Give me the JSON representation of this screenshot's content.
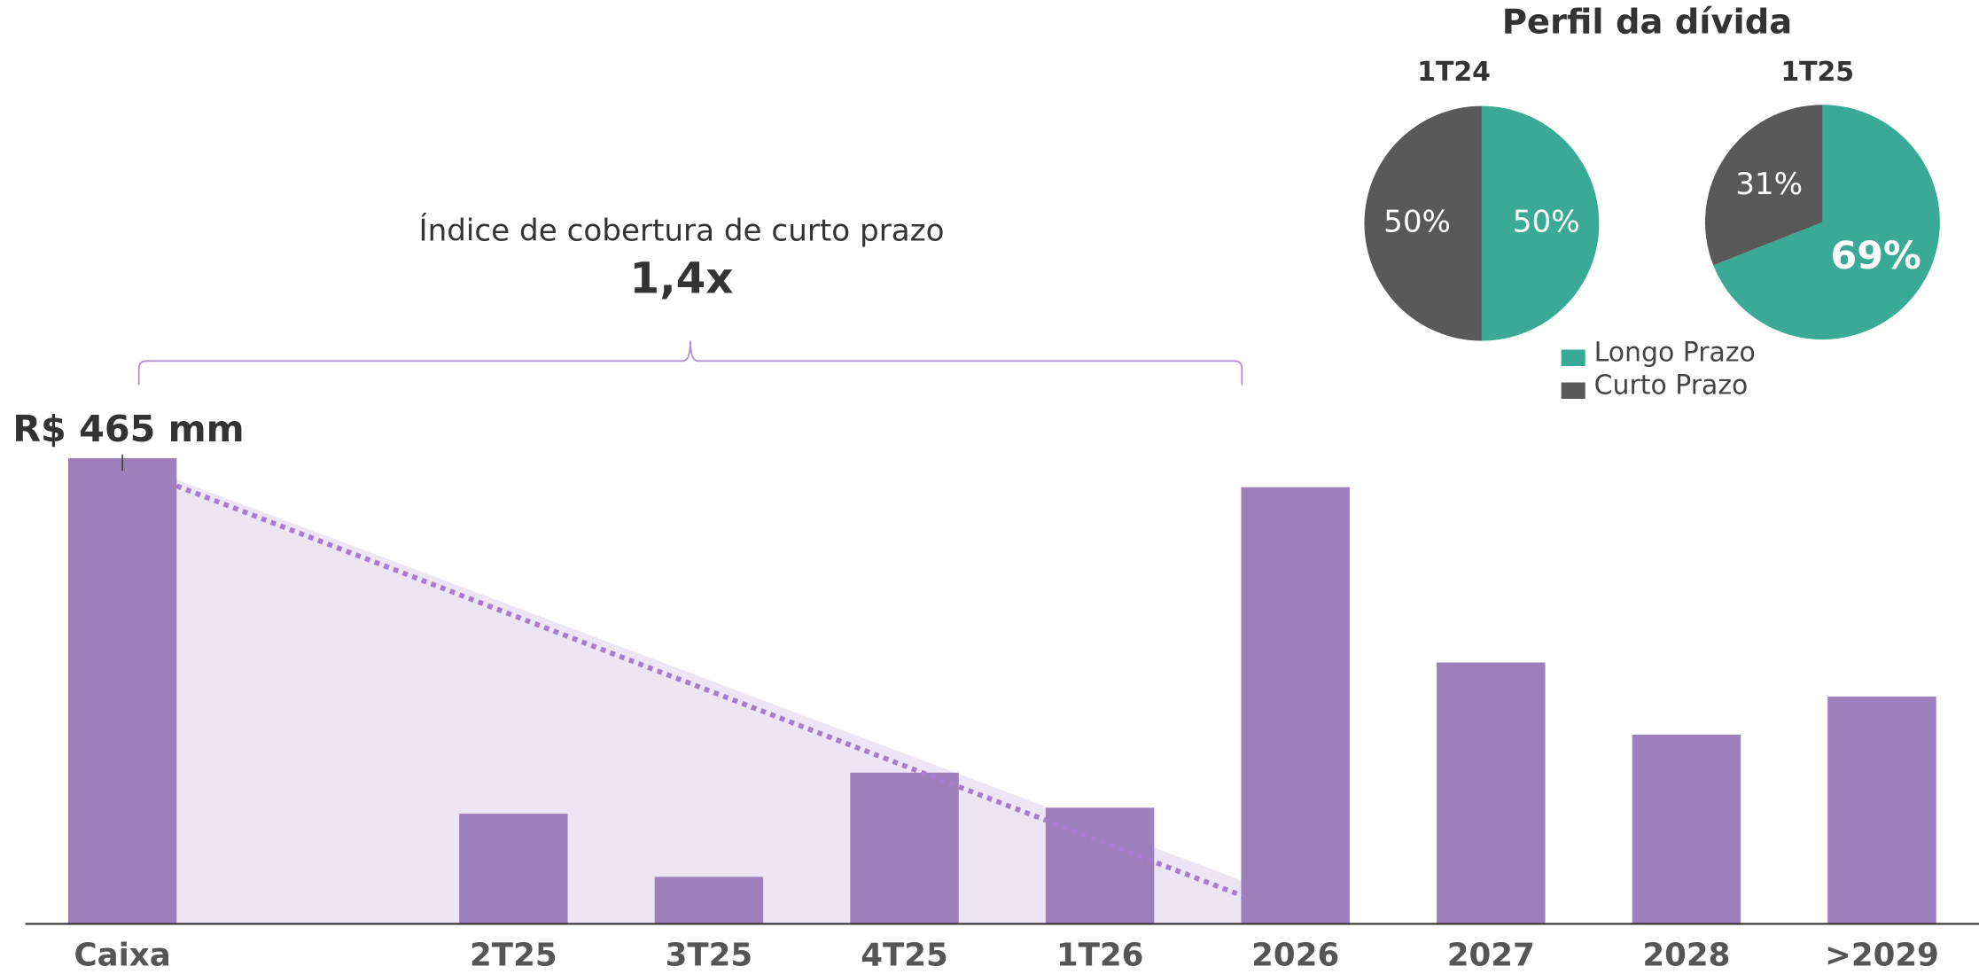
{
  "chart_data": [
    {
      "type": "bar",
      "categories": [
        "Caixa",
        null,
        "2T25",
        "3T25",
        "4T25",
        "1T26",
        "2026",
        "2027",
        "2028",
        ">2029"
      ],
      "values": [
        465,
        null,
        110,
        47,
        151,
        116,
        436,
        261,
        189,
        227
      ],
      "value_labels": [
        "R$ 465 mm",
        null,
        null,
        null,
        null,
        null,
        null,
        null,
        null,
        null
      ],
      "color": "#9d80bb",
      "annotations": [
        "Índice de cobertura de curto prazo",
        "1,4x"
      ]
    },
    {
      "type": "pie",
      "title": "Perfil da dívida",
      "categories": [
        "Longo Prazo",
        "Curto Prazo"
      ],
      "colors": [
        "#3aaa96",
        "#595959"
      ],
      "series": [
        {
          "name": "1T24",
          "values": [
            50,
            50
          ],
          "value_labels": [
            "50%",
            "50%"
          ]
        },
        {
          "name": "1T25",
          "values": [
            69,
            31
          ],
          "value_labels": [
            "69%",
            "31%"
          ]
        }
      ]
    }
  ]
}
